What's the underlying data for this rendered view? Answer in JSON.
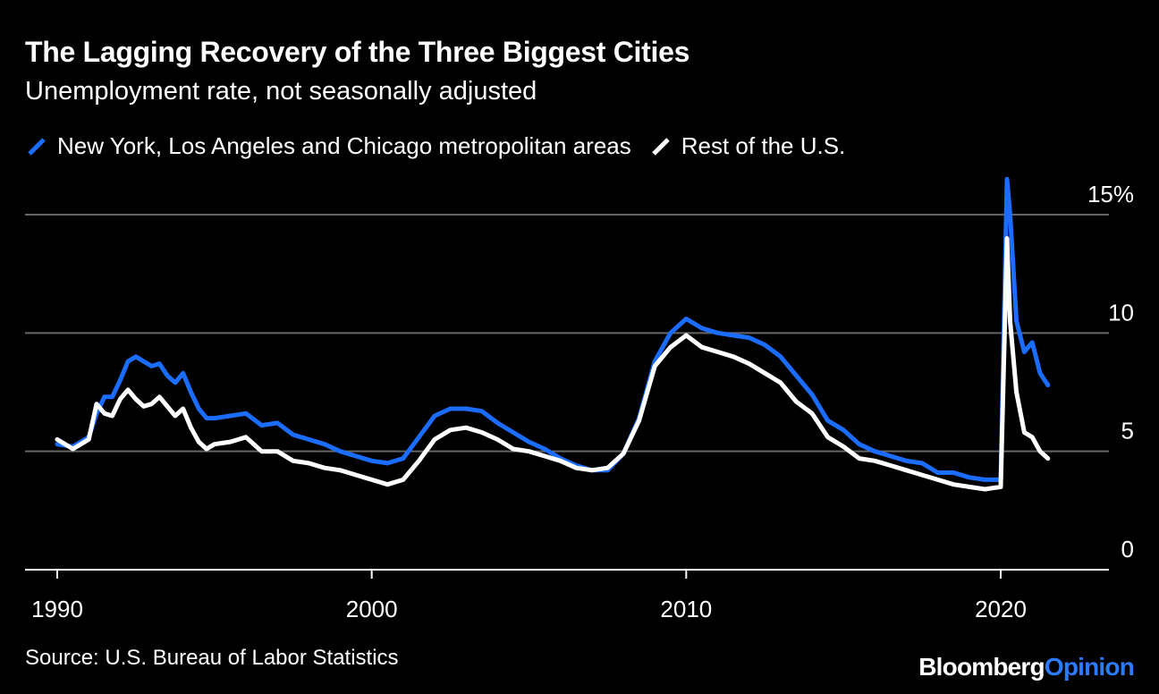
{
  "header": {
    "title": "The Lagging Recovery of the Three Biggest Cities",
    "subtitle": "Unemployment rate, not seasonally adjusted"
  },
  "footer": {
    "source": "Source: U.S. Bureau of Labor Statistics",
    "brand_primary": "Bloomberg",
    "brand_accent": "Opinion"
  },
  "colors": {
    "background": "#000000",
    "series_1": "#1a6dff",
    "series_2": "#ffffff",
    "grid": "#666666",
    "brand_accent": "#2b7bff"
  },
  "chart_data": {
    "type": "line",
    "title": "The Lagging Recovery of the Three Biggest Cities",
    "subtitle": "Unemployment rate, not seasonally adjusted",
    "xlabel": "",
    "ylabel": "",
    "xlim": [
      1990,
      2023
    ],
    "ylim": [
      0,
      15
    ],
    "x_ticks": [
      1990,
      2000,
      2010,
      2020
    ],
    "x_tick_labels": [
      "1990",
      "2000",
      "2010",
      "2020"
    ],
    "y_ticks": [
      0,
      5,
      10,
      15
    ],
    "y_tick_labels": [
      "0",
      "5",
      "10",
      "15%"
    ],
    "grid": true,
    "legend_position": "top-left",
    "series": [
      {
        "name": "New York, Los Angeles and Chicago metropolitan areas",
        "color": "#1a6dff",
        "x": [
          1990.0,
          1990.5,
          1991.0,
          1991.25,
          1991.5,
          1991.75,
          1992.0,
          1992.25,
          1992.5,
          1992.75,
          1993.0,
          1993.25,
          1993.5,
          1993.75,
          1994.0,
          1994.25,
          1994.5,
          1994.75,
          1995.0,
          1995.5,
          1996.0,
          1996.5,
          1997.0,
          1997.5,
          1998.0,
          1998.5,
          1999.0,
          1999.5,
          2000.0,
          2000.5,
          2001.0,
          2001.5,
          2002.0,
          2002.5,
          2003.0,
          2003.5,
          2004.0,
          2004.5,
          2005.0,
          2005.5,
          2006.0,
          2006.5,
          2007.0,
          2007.5,
          2008.0,
          2008.5,
          2009.0,
          2009.5,
          2010.0,
          2010.5,
          2011.0,
          2011.5,
          2012.0,
          2012.5,
          2013.0,
          2013.5,
          2014.0,
          2014.5,
          2015.0,
          2015.5,
          2016.0,
          2016.5,
          2017.0,
          2017.5,
          2018.0,
          2018.5,
          2019.0,
          2019.5,
          2020.0,
          2020.2,
          2020.3,
          2020.5,
          2020.75,
          2021.0,
          2021.25,
          2021.5
        ],
        "values": [
          5.3,
          5.2,
          5.6,
          6.6,
          7.3,
          7.3,
          8.0,
          8.8,
          9.0,
          8.8,
          8.6,
          8.7,
          8.2,
          7.9,
          8.3,
          7.5,
          6.8,
          6.4,
          6.4,
          6.5,
          6.6,
          6.1,
          6.2,
          5.7,
          5.5,
          5.3,
          5.0,
          4.8,
          4.6,
          4.5,
          4.7,
          5.6,
          6.5,
          6.8,
          6.8,
          6.7,
          6.2,
          5.8,
          5.4,
          5.1,
          4.7,
          4.4,
          4.2,
          4.2,
          4.9,
          6.4,
          8.8,
          10.0,
          10.6,
          10.2,
          10.0,
          9.9,
          9.8,
          9.5,
          9.0,
          8.2,
          7.4,
          6.3,
          5.9,
          5.3,
          5.0,
          4.8,
          4.6,
          4.5,
          4.1,
          4.1,
          3.9,
          3.8,
          3.8,
          16.5,
          15.0,
          10.5,
          9.2,
          9.6,
          8.3,
          7.8
        ]
      },
      {
        "name": "Rest of the U.S.",
        "color": "#ffffff",
        "x": [
          1990.0,
          1990.5,
          1991.0,
          1991.25,
          1991.5,
          1991.75,
          1992.0,
          1992.25,
          1992.5,
          1992.75,
          1993.0,
          1993.25,
          1993.5,
          1993.75,
          1994.0,
          1994.25,
          1994.5,
          1994.75,
          1995.0,
          1995.5,
          1996.0,
          1996.5,
          1997.0,
          1997.5,
          1998.0,
          1998.5,
          1999.0,
          1999.5,
          2000.0,
          2000.5,
          2001.0,
          2001.5,
          2002.0,
          2002.5,
          2003.0,
          2003.5,
          2004.0,
          2004.5,
          2005.0,
          2005.5,
          2006.0,
          2006.5,
          2007.0,
          2007.5,
          2008.0,
          2008.5,
          2009.0,
          2009.5,
          2010.0,
          2010.5,
          2011.0,
          2011.5,
          2012.0,
          2012.5,
          2013.0,
          2013.5,
          2014.0,
          2014.5,
          2015.0,
          2015.5,
          2016.0,
          2016.5,
          2017.0,
          2017.5,
          2018.0,
          2018.5,
          2019.0,
          2019.5,
          2020.0,
          2020.2,
          2020.3,
          2020.5,
          2020.75,
          2021.0,
          2021.25,
          2021.5
        ],
        "values": [
          5.5,
          5.1,
          5.5,
          7.0,
          6.6,
          6.5,
          7.2,
          7.6,
          7.2,
          6.9,
          7.0,
          7.3,
          6.9,
          6.5,
          6.8,
          6.0,
          5.4,
          5.1,
          5.3,
          5.4,
          5.6,
          5.0,
          5.0,
          4.6,
          4.5,
          4.3,
          4.2,
          4.0,
          3.8,
          3.6,
          3.8,
          4.6,
          5.5,
          5.9,
          6.0,
          5.8,
          5.5,
          5.1,
          5.0,
          4.8,
          4.6,
          4.3,
          4.2,
          4.3,
          4.9,
          6.3,
          8.6,
          9.4,
          9.9,
          9.4,
          9.2,
          9.0,
          8.7,
          8.3,
          7.9,
          7.1,
          6.6,
          5.6,
          5.2,
          4.7,
          4.6,
          4.4,
          4.2,
          4.0,
          3.8,
          3.6,
          3.5,
          3.4,
          3.5,
          14.0,
          10.5,
          7.5,
          5.8,
          5.6,
          5.0,
          4.7
        ]
      }
    ]
  }
}
